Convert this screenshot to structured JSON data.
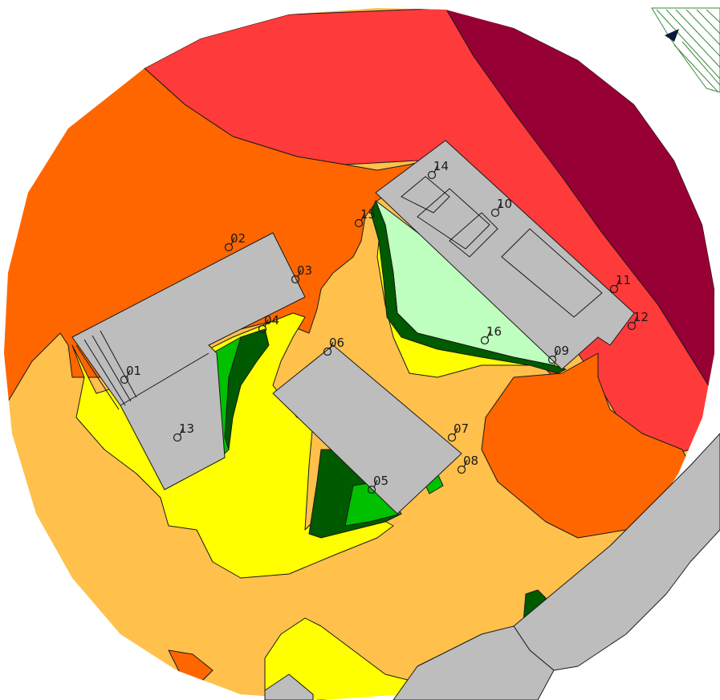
{
  "map": {
    "colors": {
      "zone_red": "#ff3a3a",
      "zone_darkred": "#960034",
      "zone_orange": "#ff6600",
      "zone_lightorange": "#ffc04c",
      "zone_yellow": "#ffff00",
      "zone_lightgreen": "#bfffbf",
      "zone_green": "#00c000",
      "zone_darkgreen": "#005a00",
      "building": "#bdbdbd",
      "outline": "#1a1a1a",
      "north_arrow": "#0a1a3a"
    },
    "north_arrow_icon": "north-arrow-icon",
    "receivers": [
      {
        "id": "01",
        "label": "01"
      },
      {
        "id": "02",
        "label": "02"
      },
      {
        "id": "03",
        "label": "03"
      },
      {
        "id": "04",
        "label": "04"
      },
      {
        "id": "05",
        "label": "05"
      },
      {
        "id": "06",
        "label": "06"
      },
      {
        "id": "07",
        "label": "07"
      },
      {
        "id": "08",
        "label": "08"
      },
      {
        "id": "09",
        "label": "09"
      },
      {
        "id": "10",
        "label": "10"
      },
      {
        "id": "11",
        "label": "11"
      },
      {
        "id": "12",
        "label": "12"
      },
      {
        "id": "13",
        "label": "13"
      },
      {
        "id": "14",
        "label": "14"
      },
      {
        "id": "15",
        "label": "15"
      },
      {
        "id": "16",
        "label": "16"
      }
    ]
  }
}
